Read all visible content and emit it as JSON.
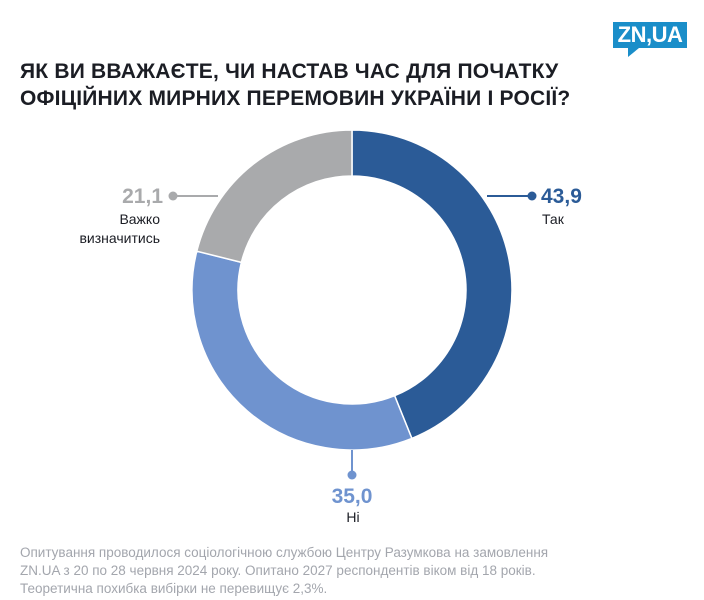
{
  "logo": {
    "text": "ZN,UA"
  },
  "title": {
    "line1": "ЯК ВИ ВВАЖАЄТЕ, ЧИ НАСТАВ ЧАС ДЛЯ ПОЧАТКУ",
    "line2": "ОФІЦІЙНИХ МИРНИХ ПЕРЕМОВИН УКРАЇНИ І РОСІЇ?"
  },
  "chart_data": {
    "type": "pie",
    "donut": true,
    "title": "ЯК ВИ ВВАЖАЄТЕ, ЧИ НАСТАВ ЧАС ДЛЯ ПОЧАТКУ ОФІЦІЙНИХ МИРНИХ ПЕРЕМОВИН УКРАЇНИ І РОСІЇ?",
    "slices": [
      {
        "label": "Так",
        "value": 43.9,
        "value_label": "43,9",
        "color": "#2b5b97"
      },
      {
        "label": "Ні",
        "value": 35.0,
        "value_label": "35,0",
        "color": "#6f93cf"
      },
      {
        "label_lines": [
          "Важко",
          "визначитись"
        ],
        "value": 21.1,
        "value_label": "21,1",
        "color": "#a9aaac"
      }
    ]
  },
  "footnote": {
    "line1": "Опитування проводилося  соціологічною службою Центру Разумкова на замовлення",
    "line2": "ZN.UA з 20 по 28 червня 2024 року. Опитано 2027 респондентів віком від 18 років.",
    "line3": "Теоретична похибка вибірки не перевищує 2,3%."
  }
}
